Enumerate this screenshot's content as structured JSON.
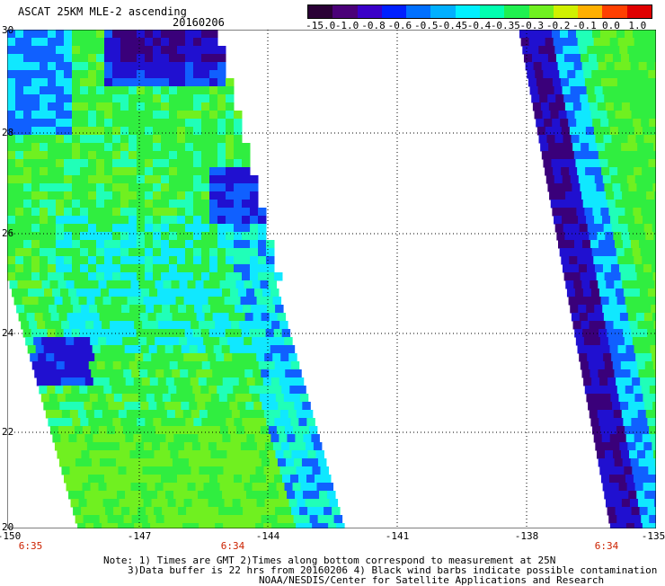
{
  "header": {
    "title": "ASCAT 25KM MLE-2 ascending",
    "date": "20160206"
  },
  "colorbar": {
    "labels": [
      "-15.0",
      "-1.0",
      "-0.8",
      "-0.6",
      "-0.5",
      "-0.45",
      "-0.4",
      "-0.35",
      "-0.3",
      "-0.2",
      "-0.1",
      "0.0",
      "1.0"
    ],
    "colors": [
      "#2a0035",
      "#4a0078",
      "#3a00c8",
      "#0020ff",
      "#0070ff",
      "#00b0ff",
      "#00f0ff",
      "#00ffb0",
      "#20f050",
      "#70f020",
      "#d0f000",
      "#ffb000",
      "#ff4000",
      "#e00000"
    ]
  },
  "axes": {
    "lat_labels": [
      "30",
      "28",
      "26",
      "24",
      "22",
      "20"
    ],
    "lon_labels": [
      "-150",
      "-147",
      "-144",
      "-141",
      "-138",
      "-135"
    ],
    "time_labels": [
      "6:35",
      "6:34",
      "6:34"
    ]
  },
  "notes": {
    "line1": "Note: 1) Times are GMT 2)Times along bottom correspond to measurement at 25N",
    "line2": "3)Data buffer is 22 hrs from 20160206 4) Black wind barbs indicate possible contamination",
    "line3": "NOAA/NESDIS/Center for Satellite Applications and Research"
  },
  "swath_colors": {
    "deep": "#3a007a",
    "dark_blue": "#2010d0",
    "blue": "#1060ff",
    "cyan": "#10e8ff",
    "aqua": "#20ffb8",
    "green": "#30ee40",
    "lime": "#70f020"
  }
}
